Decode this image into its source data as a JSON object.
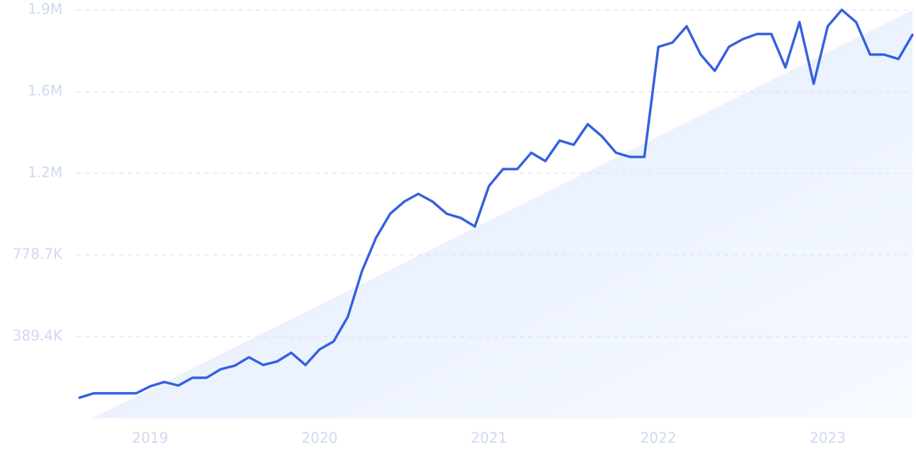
{
  "chart_data": {
    "type": "line",
    "x": [
      2018.583,
      2018.667,
      2018.75,
      2018.833,
      2018.917,
      2019,
      2019.083,
      2019.167,
      2019.25,
      2019.333,
      2019.417,
      2019.5,
      2019.583,
      2019.667,
      2019.75,
      2019.833,
      2019.917,
      2020,
      2020.083,
      2020.167,
      2020.25,
      2020.333,
      2020.417,
      2020.5,
      2020.583,
      2020.667,
      2020.75,
      2020.833,
      2020.917,
      2021,
      2021.083,
      2021.167,
      2021.25,
      2021.333,
      2021.417,
      2021.5,
      2021.583,
      2021.667,
      2021.75,
      2021.833,
      2021.917,
      2022,
      2022.083,
      2022.167,
      2022.25,
      2022.333,
      2022.417,
      2022.5,
      2022.583,
      2022.667,
      2022.75,
      2022.833,
      2022.917,
      2023,
      2023.083,
      2023.167,
      2023.25,
      2023.333,
      2023.417,
      2023.5
    ],
    "series": [
      {
        "color": "#3461de",
        "values": [
          98000,
          119000,
          119000,
          119000,
          119000,
          152000,
          173000,
          156000,
          193000,
          193000,
          234000,
          251000,
          291000,
          254000,
          271000,
          312000,
          254000,
          328000,
          366000,
          484000,
          701000,
          860000,
          975000,
          1033000,
          1070000,
          1033000,
          975000,
          955000,
          914000,
          1107000,
          1188000,
          1188000,
          1266000,
          1226000,
          1324000,
          1304000,
          1402000,
          1344000,
          1266000,
          1246000,
          1246000,
          1771000,
          1791000,
          1869000,
          1734000,
          1656000,
          1771000,
          1808000,
          1832000,
          1832000,
          1673000,
          1889000,
          1595000,
          1869000,
          1947000,
          1889000,
          1734000,
          1734000,
          1713000,
          1828000
        ]
      }
    ],
    "xlim": [
      2018.583,
      2023.5
    ],
    "xticks": [
      2019,
      2020,
      2021,
      2022,
      2023
    ],
    "ylim": [
      0,
      1946800
    ],
    "yticks": [
      {
        "value": 389400,
        "label": "389.4K"
      },
      {
        "value": 778700,
        "label": "778.7K"
      },
      {
        "value": 1168000,
        "label": "1.2M"
      },
      {
        "value": 1557000,
        "label": "1.6M"
      },
      {
        "value": 1946800,
        "label": "1.9M"
      }
    ],
    "grid": true
  }
}
